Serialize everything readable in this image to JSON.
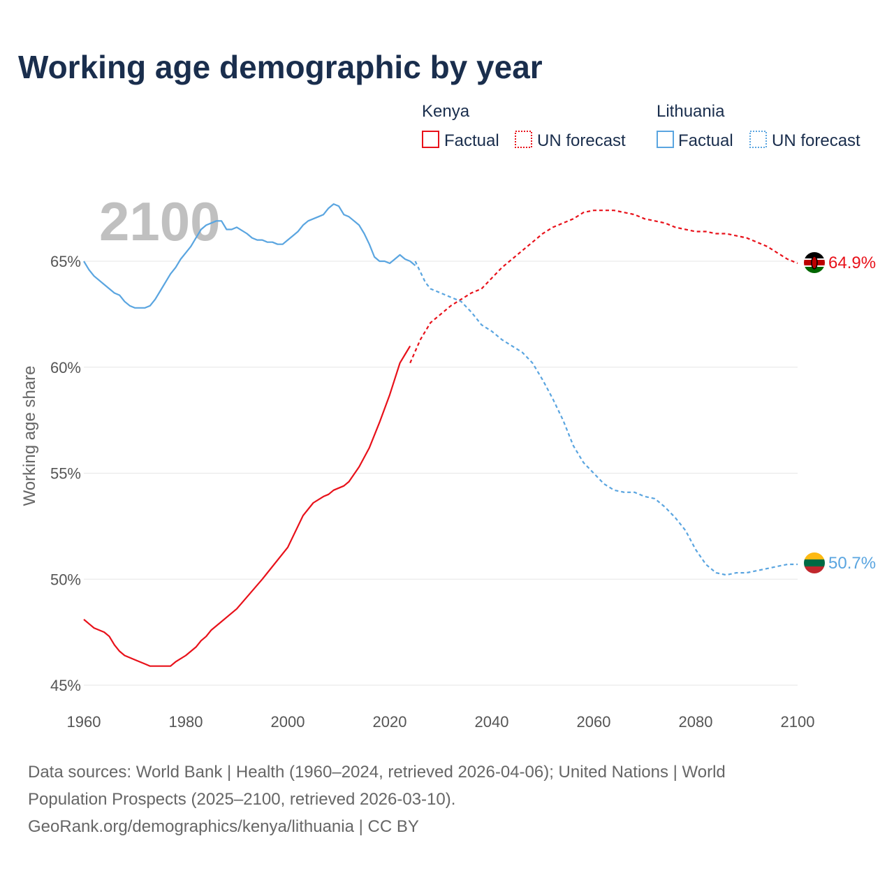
{
  "chart_data": {
    "type": "line",
    "title": "Working age demographic by year",
    "ylabel": "Working age share",
    "xlabel": "",
    "xlim": [
      1960,
      2100
    ],
    "ylim": [
      45,
      68
    ],
    "x_ticks": [
      1960,
      1980,
      2000,
      2020,
      2040,
      2060,
      2080,
      2100
    ],
    "x_tick_labels": [
      "1960",
      "1980",
      "2000",
      "2020",
      "2040",
      "2060",
      "2080",
      "2100"
    ],
    "y_ticks": [
      45,
      50,
      55,
      60,
      65
    ],
    "y_tick_labels": [
      "45%",
      "50%",
      "55%",
      "60%",
      "65%"
    ],
    "current_year_label": "2100",
    "legend": {
      "groups": [
        {
          "name": "Kenya",
          "entries": [
            {
              "label": "Factual",
              "style": "solid"
            },
            {
              "label": "UN forecast",
              "style": "dotted"
            }
          ]
        },
        {
          "name": "Lithuania",
          "entries": [
            {
              "label": "Factual",
              "style": "solid"
            },
            {
              "label": "UN forecast",
              "style": "dotted"
            }
          ]
        }
      ]
    },
    "series": [
      {
        "name": "Kenya",
        "color": "#e8111a",
        "end_label": "64.9%",
        "flag": "kenya-flag",
        "factual": {
          "x": [
            1960,
            1962,
            1964,
            1965,
            1966,
            1967,
            1968,
            1970,
            1972,
            1973,
            1975,
            1977,
            1978,
            1980,
            1982,
            1983,
            1984,
            1985,
            1987,
            1990,
            1995,
            2000,
            2003,
            2005,
            2007,
            2008,
            2009,
            2011,
            2012,
            2014,
            2016,
            2018,
            2020,
            2022,
            2023,
            2024
          ],
          "y": [
            48.1,
            47.7,
            47.5,
            47.3,
            46.9,
            46.6,
            46.4,
            46.2,
            46.0,
            45.9,
            45.9,
            45.9,
            46.1,
            46.4,
            46.8,
            47.1,
            47.3,
            47.6,
            48.0,
            48.6,
            50.0,
            51.5,
            53.0,
            53.6,
            53.9,
            54.0,
            54.2,
            54.4,
            54.6,
            55.3,
            56.2,
            57.4,
            58.7,
            60.2,
            60.6,
            61.0
          ]
        },
        "forecast": {
          "x": [
            2024,
            2026,
            2028,
            2030,
            2032,
            2034,
            2036,
            2038,
            2040,
            2042,
            2044,
            2046,
            2048,
            2050,
            2052,
            2054,
            2056,
            2058,
            2060,
            2062,
            2064,
            2066,
            2068,
            2070,
            2072,
            2074,
            2076,
            2078,
            2080,
            2082,
            2084,
            2086,
            2088,
            2090,
            2092,
            2094,
            2096,
            2098,
            2100
          ],
          "y": [
            60.2,
            61.3,
            62.1,
            62.5,
            62.9,
            63.2,
            63.5,
            63.7,
            64.2,
            64.7,
            65.1,
            65.5,
            65.9,
            66.3,
            66.6,
            66.8,
            67.0,
            67.3,
            67.4,
            67.4,
            67.4,
            67.3,
            67.2,
            67.0,
            66.9,
            66.8,
            66.6,
            66.5,
            66.4,
            66.4,
            66.3,
            66.3,
            66.2,
            66.1,
            65.9,
            65.7,
            65.4,
            65.1,
            64.9
          ]
        }
      },
      {
        "name": "Lithuania",
        "color": "#5aa5e0",
        "end_label": "50.7%",
        "flag": "lithuania-flag",
        "factual": {
          "x": [
            1960,
            1961,
            1962,
            1964,
            1966,
            1967,
            1968,
            1969,
            1970,
            1972,
            1973,
            1974,
            1975,
            1977,
            1978,
            1979,
            1980,
            1981,
            1982,
            1983,
            1984,
            1986,
            1987,
            1988,
            1989,
            1990,
            1992,
            1993,
            1994,
            1995,
            1996,
            1997,
            1998,
            1999,
            2000,
            2001,
            2002,
            2003,
            2004,
            2006,
            2007,
            2008,
            2009,
            2010,
            2011,
            2012,
            2013,
            2014,
            2015,
            2016,
            2017,
            2018,
            2019,
            2020,
            2021,
            2022,
            2023,
            2024,
            2025
          ],
          "y": [
            65.0,
            64.6,
            64.3,
            63.9,
            63.5,
            63.4,
            63.1,
            62.9,
            62.8,
            62.8,
            62.9,
            63.2,
            63.6,
            64.4,
            64.7,
            65.1,
            65.4,
            65.7,
            66.1,
            66.5,
            66.7,
            66.9,
            66.9,
            66.5,
            66.5,
            66.6,
            66.3,
            66.1,
            66.0,
            66.0,
            65.9,
            65.9,
            65.8,
            65.8,
            66.0,
            66.2,
            66.4,
            66.7,
            66.9,
            67.1,
            67.2,
            67.5,
            67.7,
            67.6,
            67.2,
            67.1,
            66.9,
            66.7,
            66.3,
            65.8,
            65.2,
            65.0,
            65.0,
            64.9,
            65.1,
            65.3,
            65.1,
            65.0,
            64.8
          ]
        },
        "forecast": {
          "x": [
            2025,
            2026,
            2027,
            2028,
            2030,
            2032,
            2034,
            2036,
            2038,
            2040,
            2042,
            2044,
            2046,
            2048,
            2050,
            2052,
            2054,
            2056,
            2058,
            2060,
            2062,
            2064,
            2066,
            2068,
            2070,
            2072,
            2074,
            2076,
            2078,
            2080,
            2082,
            2084,
            2086,
            2088,
            2090,
            2092,
            2094,
            2096,
            2098,
            2100
          ],
          "y": [
            65.0,
            64.5,
            64.0,
            63.7,
            63.5,
            63.3,
            63.1,
            62.6,
            62.0,
            61.7,
            61.3,
            61.0,
            60.7,
            60.2,
            59.4,
            58.5,
            57.5,
            56.3,
            55.5,
            55.0,
            54.5,
            54.2,
            54.1,
            54.1,
            53.9,
            53.8,
            53.4,
            52.9,
            52.3,
            51.4,
            50.7,
            50.3,
            50.2,
            50.3,
            50.3,
            50.4,
            50.5,
            50.6,
            50.7,
            50.7
          ]
        }
      }
    ]
  },
  "footer": {
    "line1": "Data sources: World Bank | Health (1960–2024, retrieved 2026-04-06); United Nations | World",
    "line2": "Population Prospects (2025–2100, retrieved 2026-03-10).",
    "line3": "GeoRank.org/demographics/kenya/lithuania | CC BY"
  }
}
